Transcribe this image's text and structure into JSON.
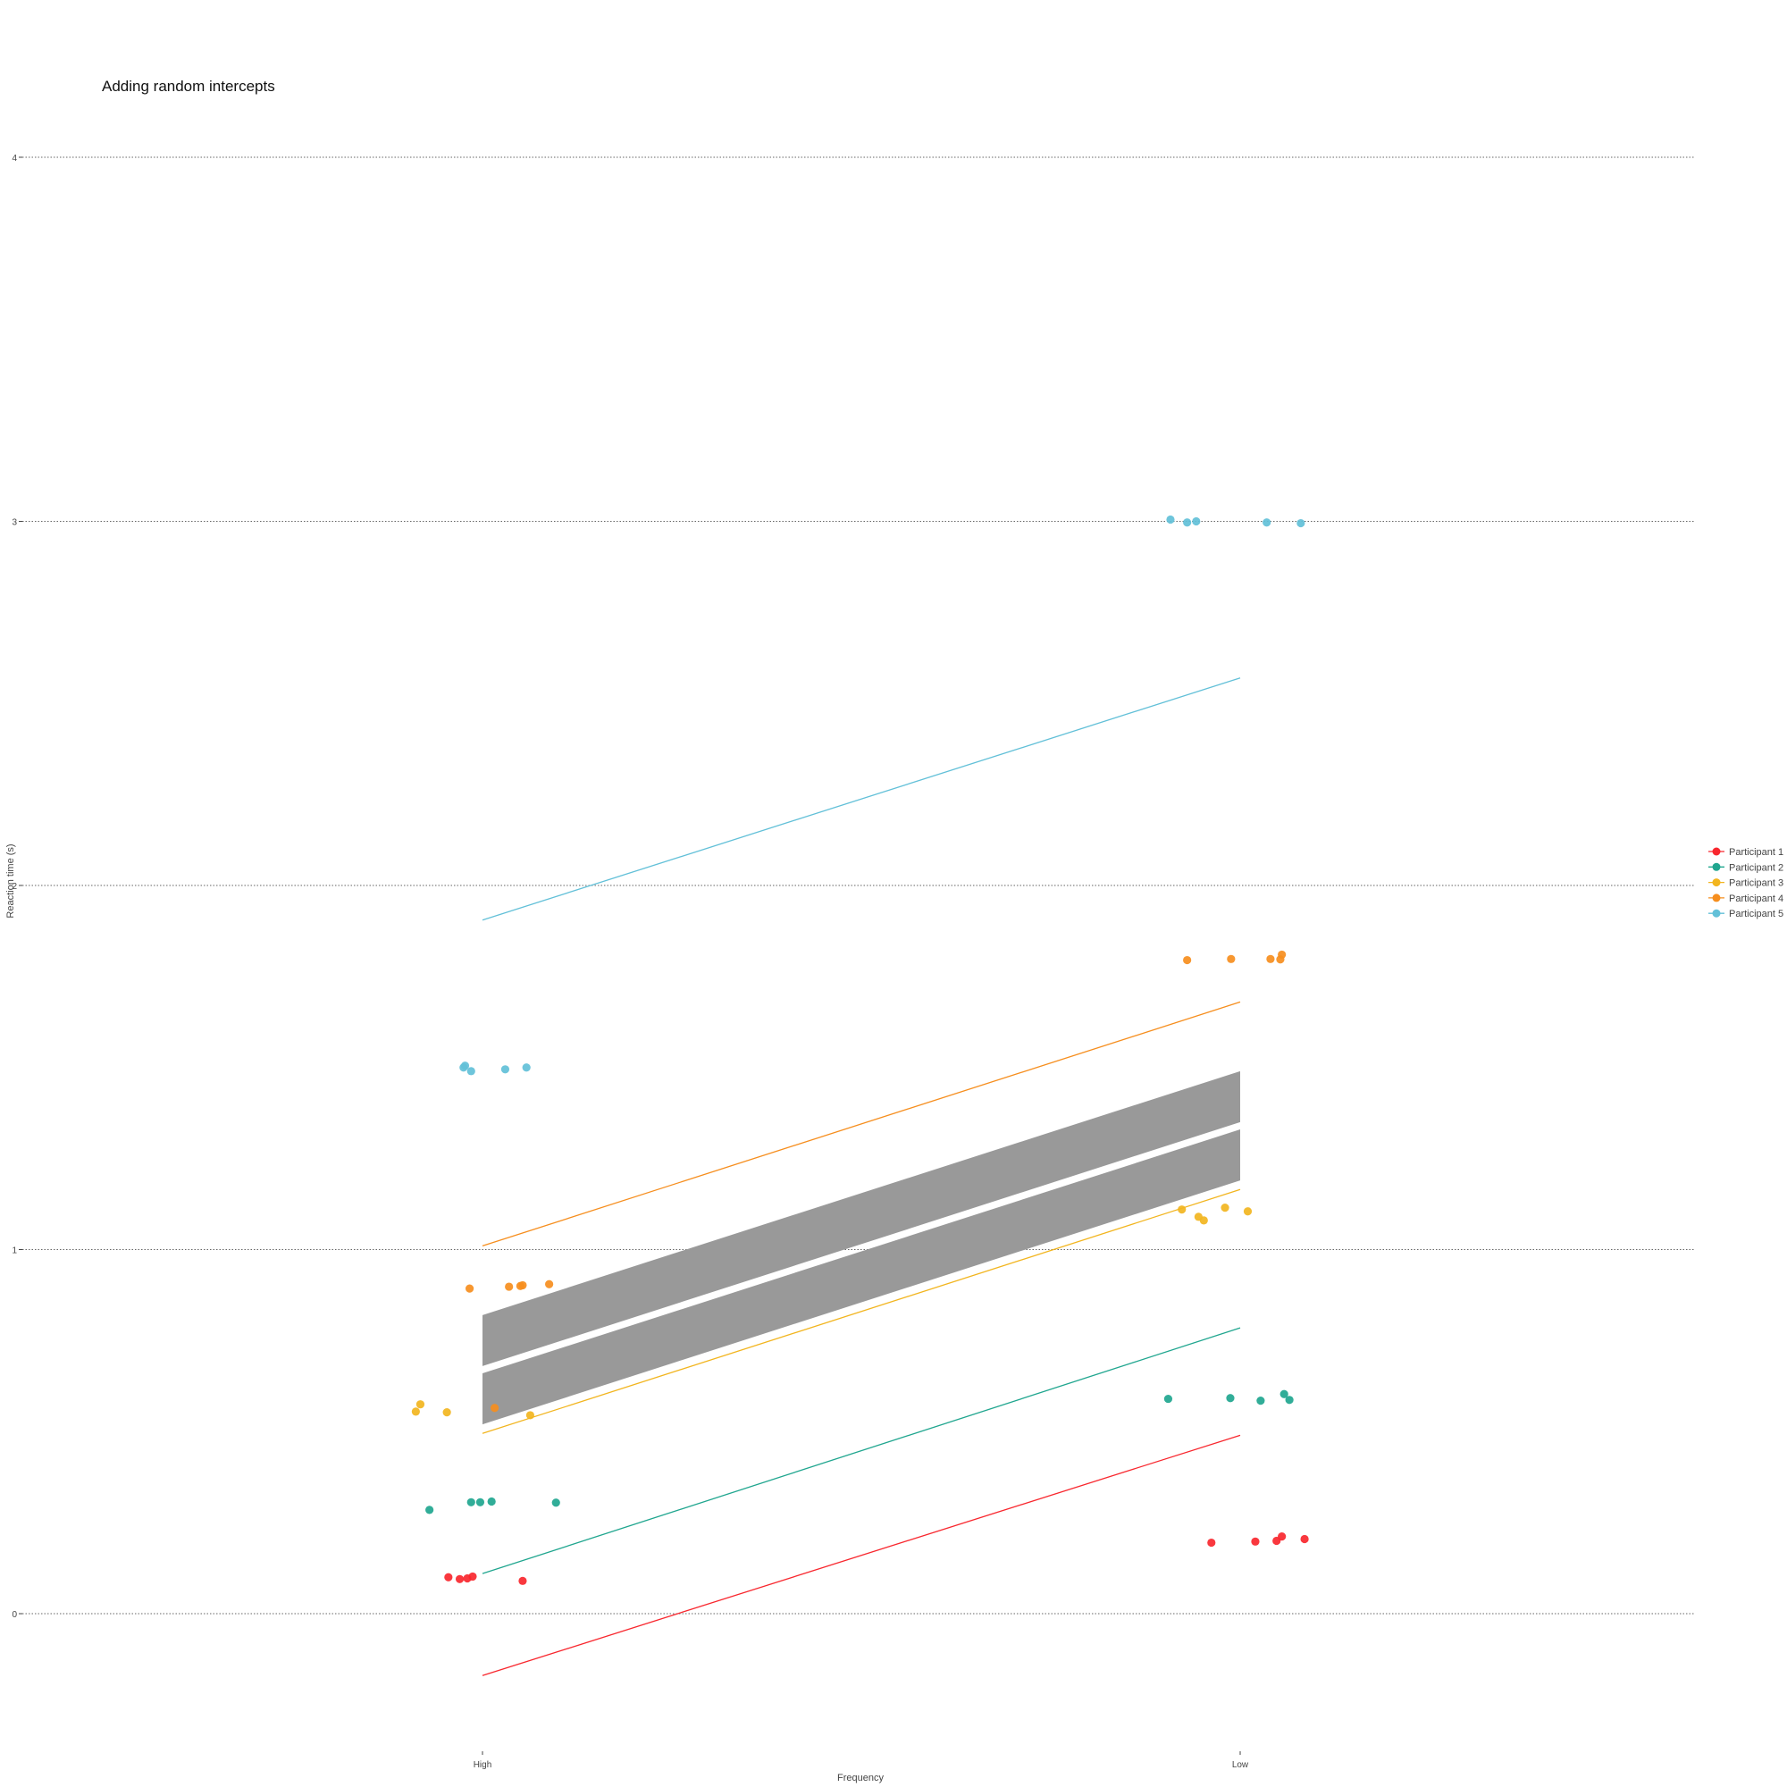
{
  "chart_data": {
    "type": "scatter",
    "title": "Adding random intercepts",
    "xlabel": "Frequency",
    "ylabel": "Reaction time (s)",
    "categories": [
      "High",
      "Low"
    ],
    "y_ticks": [
      "0",
      "1",
      "2",
      "3",
      "4"
    ],
    "ylim": [
      -0.35,
      4.25
    ],
    "grid": "horizontal dotted",
    "legend_position": "right",
    "colors": {
      "Participant 1": "#f8272e",
      "Participant 2": "#20a68f",
      "Participant 3": "#f2b51f",
      "Participant 4": "#f68e1e",
      "Participant 5": "#62c0d8",
      "fixed_band": "#999999"
    },
    "series": [
      {
        "name": "Participant 1",
        "points": [
          {
            "x": "High",
            "jitter": -0.045,
            "y": 0.1
          },
          {
            "x": "High",
            "jitter": -0.03,
            "y": 0.095
          },
          {
            "x": "High",
            "jitter": -0.02,
            "y": 0.097
          },
          {
            "x": "High",
            "jitter": -0.013,
            "y": 0.102
          },
          {
            "x": "High",
            "jitter": 0.053,
            "y": 0.09
          },
          {
            "x": "Low",
            "jitter": -0.038,
            "y": 0.195
          },
          {
            "x": "Low",
            "jitter": 0.02,
            "y": 0.198
          },
          {
            "x": "Low",
            "jitter": 0.048,
            "y": 0.2
          },
          {
            "x": "Low",
            "jitter": 0.055,
            "y": 0.212
          },
          {
            "x": "Low",
            "jitter": 0.085,
            "y": 0.205
          }
        ],
        "line": {
          "High": -0.17,
          "Low": 0.49
        }
      },
      {
        "name": "Participant 2",
        "points": [
          {
            "x": "High",
            "jitter": -0.07,
            "y": 0.285
          },
          {
            "x": "High",
            "jitter": -0.015,
            "y": 0.306
          },
          {
            "x": "High",
            "jitter": -0.003,
            "y": 0.306
          },
          {
            "x": "High",
            "jitter": 0.012,
            "y": 0.308
          },
          {
            "x": "High",
            "jitter": 0.097,
            "y": 0.305
          },
          {
            "x": "Low",
            "jitter": -0.095,
            "y": 0.59
          },
          {
            "x": "Low",
            "jitter": -0.013,
            "y": 0.592
          },
          {
            "x": "Low",
            "jitter": 0.027,
            "y": 0.585
          },
          {
            "x": "Low",
            "jitter": 0.058,
            "y": 0.603
          },
          {
            "x": "Low",
            "jitter": 0.065,
            "y": 0.587
          }
        ],
        "line": {
          "High": 0.11,
          "Low": 0.785
        }
      },
      {
        "name": "Participant 3",
        "points": [
          {
            "x": "High",
            "jitter": -0.088,
            "y": 0.555
          },
          {
            "x": "High",
            "jitter": -0.082,
            "y": 0.575
          },
          {
            "x": "High",
            "jitter": -0.047,
            "y": 0.553
          },
          {
            "x": "High",
            "jitter": 0.063,
            "y": 0.545
          },
          {
            "x": "Low",
            "jitter": -0.077,
            "y": 1.11
          },
          {
            "x": "Low",
            "jitter": -0.055,
            "y": 1.09
          },
          {
            "x": "Low",
            "jitter": -0.048,
            "y": 1.08
          },
          {
            "x": "Low",
            "jitter": -0.02,
            "y": 1.115
          },
          {
            "x": "Low",
            "jitter": 0.01,
            "y": 1.105
          }
        ],
        "line": {
          "High": 0.495,
          "Low": 1.165
        }
      },
      {
        "name": "Participant 4",
        "points": [
          {
            "x": "High",
            "jitter": -0.017,
            "y": 0.893
          },
          {
            "x": "High",
            "jitter": 0.035,
            "y": 0.898
          },
          {
            "x": "High",
            "jitter": 0.05,
            "y": 0.9
          },
          {
            "x": "High",
            "jitter": 0.053,
            "y": 0.902
          },
          {
            "x": "High",
            "jitter": 0.088,
            "y": 0.905
          },
          {
            "x": "High",
            "jitter": 0.016,
            "y": 0.565
          },
          {
            "x": "Low",
            "jitter": -0.07,
            "y": 1.795
          },
          {
            "x": "Low",
            "jitter": -0.012,
            "y": 1.798
          },
          {
            "x": "Low",
            "jitter": 0.04,
            "y": 1.798
          },
          {
            "x": "Low",
            "jitter": 0.053,
            "y": 1.797
          },
          {
            "x": "Low",
            "jitter": 0.055,
            "y": 1.81
          }
        ],
        "line": {
          "High": 1.01,
          "Low": 1.68
        }
      },
      {
        "name": "Participant 5",
        "points": [
          {
            "x": "High",
            "jitter": -0.025,
            "y": 1.5
          },
          {
            "x": "High",
            "jitter": -0.023,
            "y": 1.505
          },
          {
            "x": "High",
            "jitter": -0.015,
            "y": 1.49
          },
          {
            "x": "High",
            "jitter": 0.03,
            "y": 1.495
          },
          {
            "x": "High",
            "jitter": 0.058,
            "y": 1.5
          },
          {
            "x": "Low",
            "jitter": -0.092,
            "y": 3.005
          },
          {
            "x": "Low",
            "jitter": -0.07,
            "y": 2.997
          },
          {
            "x": "Low",
            "jitter": -0.058,
            "y": 3.0
          },
          {
            "x": "Low",
            "jitter": 0.035,
            "y": 2.997
          },
          {
            "x": "Low",
            "jitter": 0.08,
            "y": 2.995
          }
        ],
        "line": {
          "High": 1.905,
          "Low": 2.57
        }
      }
    ],
    "fixed_effect_band": {
      "upper": {
        "High_top": 0.82,
        "High_bottom": 0.68,
        "Low_top": 1.49,
        "Low_bottom": 1.35
      },
      "lower": {
        "High_top": 0.66,
        "High_bottom": 0.52,
        "Low_top": 1.33,
        "Low_bottom": 1.19
      }
    }
  }
}
